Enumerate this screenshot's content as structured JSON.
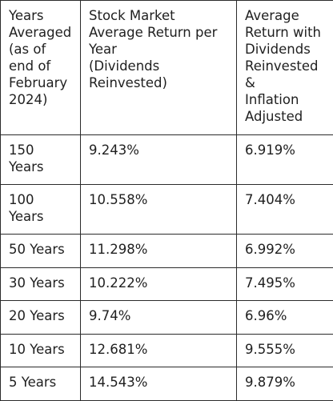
{
  "table": {
    "headers": [
      "Years\nAveraged\n(as of\nend of\nFebruary\n2024)",
      "Stock Market\nAverage Return per\nYear\n(Dividends\nReinvested)",
      "Average\nReturn with\nDividends\nReinvested\n&\nInflation\nAdjusted"
    ],
    "rows": [
      [
        "150\nYears",
        "9.243%",
        "6.919%"
      ],
      [
        "100\nYears",
        "10.558%",
        "7.404%"
      ],
      [
        "50 Years",
        "11.298%",
        "6.992%"
      ],
      [
        "30 Years",
        "10.222%",
        "7.495%"
      ],
      [
        "20 Years",
        "9.74%",
        "6.96%"
      ],
      [
        "10 Years",
        "12.681%",
        "9.555%"
      ],
      [
        "5 Years",
        "14.543%",
        "9.879%"
      ]
    ]
  }
}
